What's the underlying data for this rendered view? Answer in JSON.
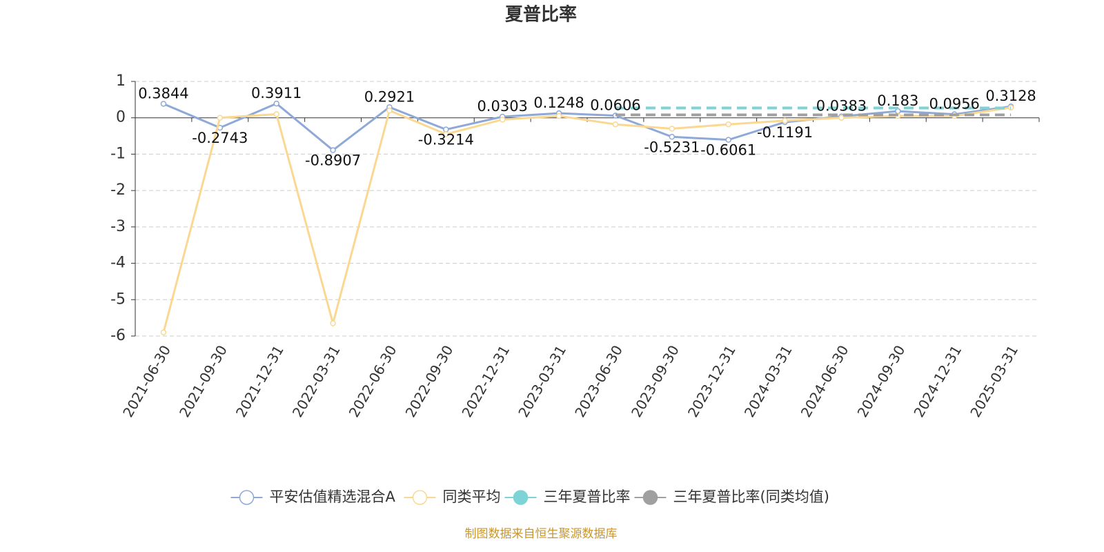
{
  "chart_data": {
    "type": "line",
    "title": "夏普比率",
    "categories": [
      "2021-06-30",
      "2021-09-30",
      "2021-12-31",
      "2022-03-31",
      "2022-06-30",
      "2022-09-30",
      "2022-12-31",
      "2023-03-31",
      "2023-06-30",
      "2023-09-30",
      "2023-12-31",
      "2024-03-31",
      "2024-06-30",
      "2024-09-30",
      "2024-12-31",
      "2025-03-31"
    ],
    "series": [
      {
        "name": "平安估值精选混合A",
        "color": "#8ea8d8",
        "values": [
          0.3844,
          -0.2743,
          0.3911,
          -0.8907,
          0.2921,
          -0.3214,
          0.0303,
          0.1248,
          0.0606,
          -0.5231,
          -0.6061,
          -0.1191,
          0.0383,
          0.183,
          0.0956,
          0.3128
        ]
      },
      {
        "name": "同类平均",
        "color": "#fbd892",
        "values": [
          -5.9,
          0.0,
          0.1,
          -5.65,
          0.2,
          -0.45,
          -0.05,
          0.05,
          -0.18,
          -0.3,
          -0.18,
          -0.08,
          0.0,
          0.05,
          0.05,
          0.28
        ]
      },
      {
        "name": "三年夏普比率",
        "color": "#7ed3d6",
        "dashed": true,
        "values": [
          null,
          null,
          null,
          null,
          null,
          null,
          null,
          null,
          0.27,
          0.27,
          0.27,
          0.27,
          0.27,
          0.27,
          0.27,
          0.27
        ]
      },
      {
        "name": "三年夏普比率(同类均值)",
        "color": "#a0a0a0",
        "dashed": true,
        "values": [
          null,
          null,
          null,
          null,
          null,
          null,
          null,
          null,
          0.08,
          0.08,
          0.08,
          0.08,
          0.08,
          0.08,
          0.08,
          0.08
        ]
      }
    ],
    "ylim": [
      -6,
      1
    ],
    "yticks": [
      1,
      0,
      -1,
      -2,
      -3,
      -4,
      -5,
      -6
    ],
    "grid": true,
    "data_labels_series": 0,
    "footer": "制图数据来自恒生聚源数据库"
  }
}
